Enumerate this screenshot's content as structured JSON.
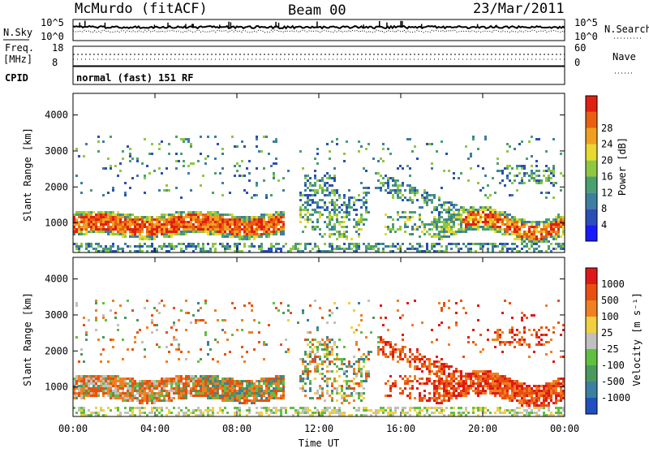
{
  "header": {
    "station": "McMurdo (fitACF)",
    "beam": "Beam 00",
    "date": "23/Mar/2011"
  },
  "top_panels": {
    "nsky_label": "N.Sky",
    "nsky_ticks": [
      "10^5",
      "10^0"
    ],
    "nsearch_label": "N.Search",
    "nsearch_ticks": [
      "10^5",
      "10^0"
    ],
    "freq_label_line1": "Freq.",
    "freq_label_line2": "[MHz]",
    "freq_ticks": [
      "18",
      "8"
    ],
    "nave_label": "Nave",
    "nave_ticks": [
      "60",
      "0"
    ],
    "cpid_label": "CPID",
    "cpid_text": "normal (fast) 151 RF"
  },
  "chart_data": [
    {
      "type": "heatmap",
      "name": "power-panel",
      "ylabel": "Slant Range [km]",
      "yticks": [
        1000,
        2000,
        3000,
        4000
      ],
      "ylim": [
        180,
        4600
      ],
      "x_ticks": [
        "00:00",
        "04:00",
        "08:00",
        "12:00",
        "16:00",
        "20:00",
        "00:00"
      ],
      "colorbar": {
        "label": "Power [dB]",
        "ticks": [
          "4",
          "8",
          "12",
          "16",
          "20",
          "24",
          "28"
        ],
        "colors": [
          "#1a1aff",
          "#2a4fb8",
          "#3d7fa0",
          "#4aa070",
          "#8fc840",
          "#e8d830",
          "#f0a020",
          "#e86010",
          "#e02010"
        ]
      }
    },
    {
      "type": "heatmap",
      "name": "velocity-panel",
      "ylabel": "Slant Range [km]",
      "yticks": [
        1000,
        2000,
        3000,
        4000
      ],
      "ylim": [
        180,
        4600
      ],
      "xlabel": "Time UT",
      "x_ticks": [
        "00:00",
        "04:00",
        "08:00",
        "12:00",
        "16:00",
        "20:00",
        "00:00"
      ],
      "colorbar": {
        "label": "Velocity [m s⁻¹]",
        "ticks": [
          "1000",
          "500",
          "100",
          "25",
          "-25",
          "-100",
          "-500",
          "-1000"
        ],
        "colors": [
          "#2050c0",
          "#3a80a0",
          "#4a9a60",
          "#60c040",
          "#c0c0c0",
          "#f0d040",
          "#f08020",
          "#e85010",
          "#e01818"
        ]
      }
    }
  ]
}
